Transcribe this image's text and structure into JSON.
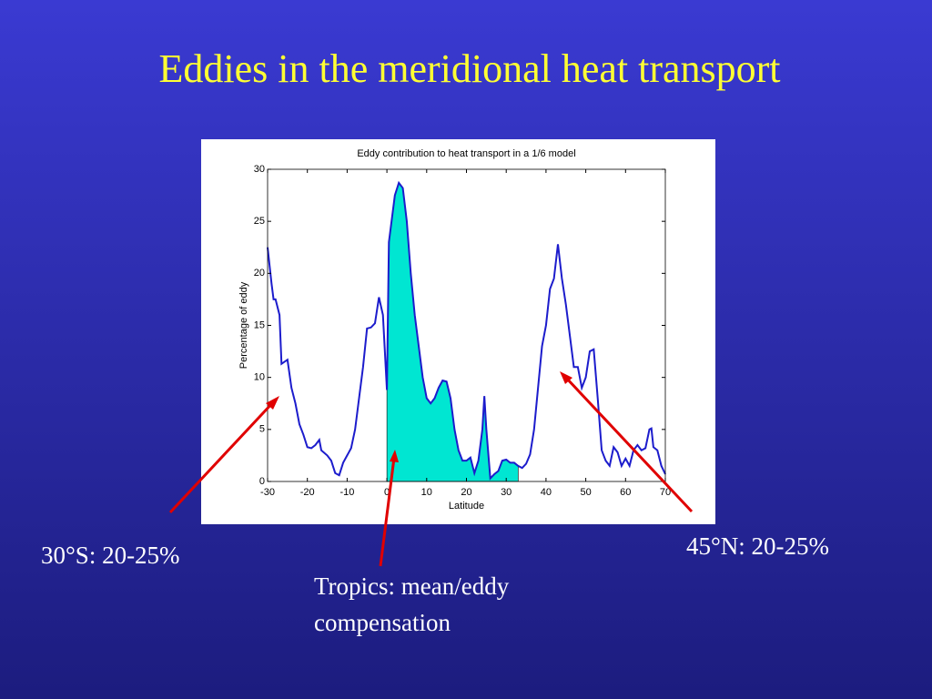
{
  "slide": {
    "title": "Eddies in the meridional heat transport",
    "annotations": [
      "30°S: 20-25%",
      "45°N: 20-25%"
    ],
    "tropics_note": [
      "Tropics: mean/eddy",
      "compensation"
    ]
  },
  "chart_data": {
    "type": "line",
    "title": "Eddy contribution to heat transport in a 1/6 model",
    "xlabel": "Latitude",
    "ylabel": "Percentage of eddy",
    "xlim": [
      -30,
      70
    ],
    "ylim": [
      0,
      30
    ],
    "xticks": [
      -30,
      -20,
      -10,
      0,
      10,
      20,
      30,
      40,
      50,
      60,
      70
    ],
    "yticks": [
      0,
      5,
      10,
      15,
      20,
      25,
      30
    ],
    "shade_x": [
      0,
      33
    ],
    "shade_color": "#00e6d2",
    "series": [
      {
        "name": "Percentage of eddy",
        "color": "#1c1ccc",
        "x": [
          -30,
          -29,
          -28.5,
          -28,
          -27,
          -26.5,
          -25,
          -24,
          -23,
          -22,
          -21,
          -20,
          -19,
          -18,
          -17,
          -16.5,
          -15,
          -14,
          -13,
          -12,
          -11,
          -10,
          -9,
          -8,
          -7,
          -6,
          -5,
          -4,
          -3,
          -2,
          -1,
          0,
          0.5,
          1,
          2,
          3,
          4,
          5,
          6,
          7,
          8,
          9,
          10,
          11,
          12,
          13,
          14,
          15,
          16,
          17,
          18,
          19,
          20,
          21,
          22,
          23,
          24,
          24.5,
          25,
          26,
          27,
          28,
          29,
          30,
          31,
          32,
          33,
          34,
          35,
          36,
          37,
          38,
          39,
          40,
          41,
          42,
          43,
          44,
          45,
          46,
          47,
          48,
          49,
          50,
          51,
          52,
          53,
          54,
          55,
          56,
          57,
          58,
          59,
          60,
          61,
          62,
          63,
          64,
          65,
          66,
          66.5,
          67,
          68,
          69,
          70
        ],
        "values": [
          22.5,
          19,
          17.5,
          17.5,
          16,
          11.3,
          11.7,
          9,
          7.5,
          5.5,
          4.5,
          3.3,
          3.2,
          3.5,
          4,
          3,
          2.5,
          2,
          0.8,
          0.6,
          1.8,
          2.5,
          3.2,
          5,
          8,
          11,
          14.7,
          14.8,
          15.2,
          17.7,
          16,
          8.8,
          23,
          24.5,
          27.5,
          28.7,
          28.2,
          25,
          20,
          16,
          13,
          10,
          8,
          7.5,
          8,
          9,
          9.7,
          9.6,
          8,
          5,
          3,
          2,
          2,
          2.3,
          0.8,
          2,
          5,
          8.2,
          5,
          0.3,
          0.7,
          1,
          2,
          2.1,
          1.8,
          1.8,
          1.5,
          1.3,
          1.7,
          2.6,
          5,
          9,
          13,
          15,
          18.5,
          19.5,
          22.8,
          19.5,
          17,
          14,
          11,
          11,
          9,
          10,
          12.5,
          12.7,
          8,
          3,
          2,
          1.5,
          3.3,
          2.8,
          1.5,
          2.2,
          1.5,
          3,
          3.5,
          3,
          3.2,
          5,
          5.1,
          3.3,
          3,
          1.5,
          0.7
        ]
      }
    ]
  }
}
